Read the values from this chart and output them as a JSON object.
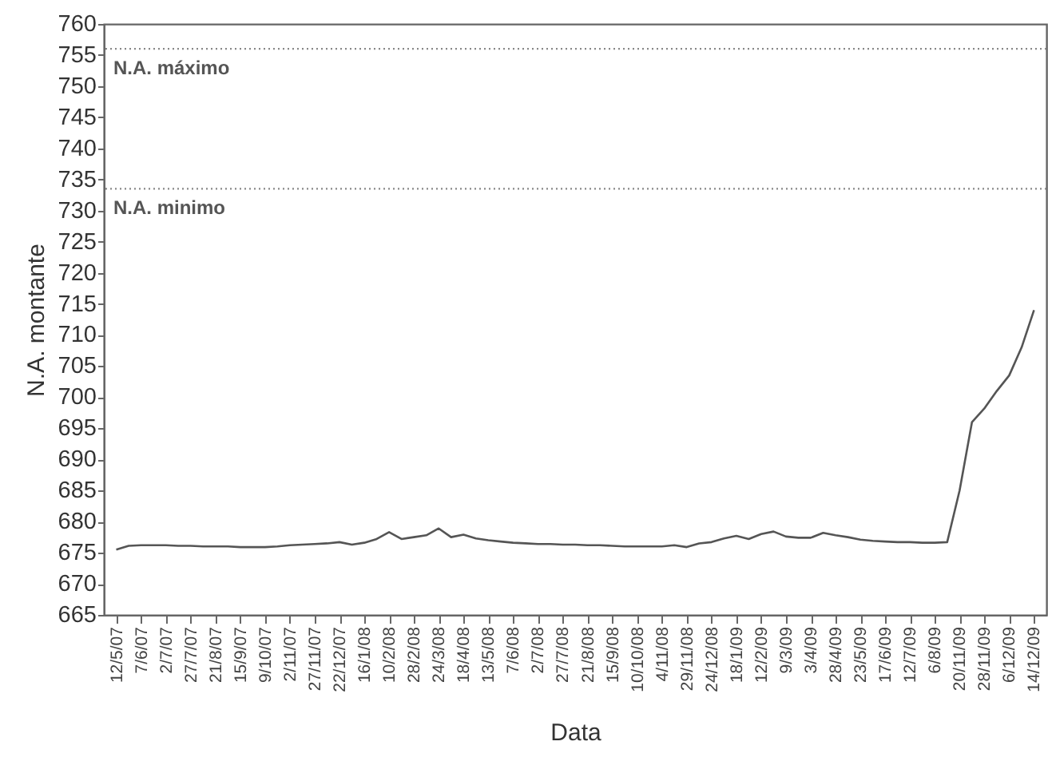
{
  "chart_data": {
    "type": "line",
    "xlabel": "Data",
    "ylabel": "N.A. montante",
    "categories": [
      "12/5/07",
      null,
      "7/6/07",
      null,
      "2/7/07",
      null,
      "27/7/07",
      null,
      "21/8/07",
      null,
      "15/9/07",
      null,
      "9/10/07",
      null,
      "2/11/07",
      null,
      "27/11/07",
      null,
      "22/12/07",
      null,
      "16/1/08",
      null,
      "10/2/08",
      null,
      "28/2/08",
      null,
      "24/3/08",
      null,
      "18/4/08",
      null,
      "13/5/08",
      null,
      "7/6/08",
      null,
      "2/7/08",
      null,
      "27/7/08",
      null,
      "21/8/08",
      null,
      "15/9/08",
      null,
      "10/10/08",
      null,
      "4/11/08",
      null,
      "29/11/08",
      null,
      "24/12/08",
      null,
      "18/1/09",
      null,
      "12/2/09",
      null,
      "9/3/09",
      null,
      "3/4/09",
      null,
      "28/4/09",
      null,
      "23/5/09",
      null,
      "17/6/09",
      null,
      "12/7/09",
      null,
      "6/8/09",
      null,
      "20/11/09",
      null,
      "28/11/09",
      null,
      "6/12/09",
      null,
      "14/12/09"
    ],
    "series": [
      {
        "color": "#555555",
        "values": [
          675.5,
          676.1,
          676.2,
          676.2,
          676.2,
          676.1,
          676.1,
          676.0,
          676.0,
          676.0,
          675.9,
          675.9,
          675.9,
          676.0,
          676.2,
          676.3,
          676.4,
          676.5,
          676.7,
          676.3,
          676.6,
          677.2,
          678.3,
          677.2,
          677.5,
          677.8,
          678.9,
          677.5,
          677.9,
          677.3,
          677.0,
          676.8,
          676.6,
          676.5,
          676.4,
          676.4,
          676.3,
          676.3,
          676.2,
          676.2,
          676.1,
          676.0,
          676.0,
          676.0,
          676.0,
          676.2,
          675.9,
          676.5,
          676.7,
          677.3,
          677.7,
          677.2,
          678.0,
          678.4,
          677.6,
          677.4,
          677.4,
          678.2,
          677.8,
          677.5,
          677.1,
          676.9,
          676.8,
          676.7,
          676.7,
          676.6,
          676.6,
          676.7,
          685,
          696,
          698.2,
          701,
          703.5,
          708,
          714
        ]
      }
    ],
    "ylim": [
      665,
      760
    ],
    "yticks": [
      665,
      670,
      675,
      680,
      685,
      690,
      695,
      700,
      705,
      710,
      715,
      720,
      725,
      730,
      735,
      740,
      745,
      750,
      755,
      760
    ],
    "grid": false,
    "line_style": "solid",
    "ref_lines": [
      {
        "axis": "y",
        "value": 756,
        "label": "N.A. máximo",
        "color": "#888888",
        "line_style": "dotted"
      },
      {
        "axis": "y",
        "value": 733.5,
        "label": "N.A. minimo",
        "color": "#888888",
        "line_style": "dotted"
      }
    ]
  }
}
